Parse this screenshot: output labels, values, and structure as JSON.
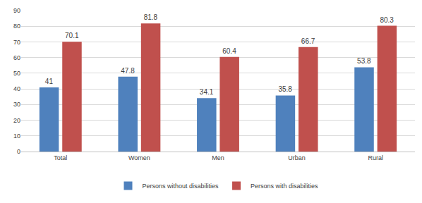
{
  "chart_data": {
    "type": "bar",
    "categories": [
      "Total",
      "Women",
      "Men",
      "Urban",
      "Rural"
    ],
    "series": [
      {
        "name": "Persons without disabilities",
        "color": "#4f81bd",
        "values": [
          41,
          47.8,
          34.1,
          35.8,
          53.8
        ]
      },
      {
        "name": "Persons with disabilities",
        "color": "#c0504d",
        "values": [
          70.1,
          81.8,
          60.4,
          66.7,
          80.3
        ]
      }
    ],
    "ylim": [
      0,
      90
    ],
    "yticks": [
      0,
      10,
      20,
      30,
      40,
      50,
      60,
      70,
      80,
      90
    ],
    "grid": true,
    "legend": "bottom",
    "data_labels": true
  }
}
